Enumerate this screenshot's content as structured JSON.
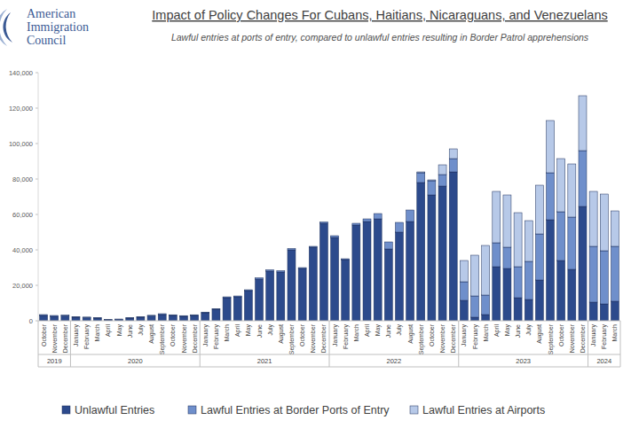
{
  "header": {
    "logo_lines": [
      "American",
      "Immigration",
      "Council"
    ]
  },
  "chart_data": {
    "type": "bar",
    "stacked": true,
    "grid": false,
    "legend": "bottom",
    "title": "Impact of Policy Changes For Cubans, Haitians, Nicaraguans, and Venezuelans",
    "subtitle": "Lawful entries at ports of entry, compared to unlawful entries resulting in Border Patrol apprehensions",
    "categories": [
      "October",
      "November",
      "December",
      "January",
      "February",
      "March",
      "April",
      "May",
      "June",
      "July",
      "August",
      "September",
      "October",
      "November",
      "December",
      "January",
      "February",
      "March",
      "April",
      "May",
      "June",
      "July",
      "August",
      "September",
      "October",
      "November",
      "December",
      "January",
      "February",
      "March",
      "April",
      "May",
      "June",
      "July",
      "August",
      "September",
      "October",
      "November",
      "December",
      "January",
      "February",
      "March",
      "April",
      "May",
      "June",
      "July",
      "August",
      "September",
      "October",
      "November",
      "December",
      "January",
      "February",
      "March"
    ],
    "category_years": [
      "2019",
      "2019",
      "2019",
      "2020",
      "2020",
      "2020",
      "2020",
      "2020",
      "2020",
      "2020",
      "2020",
      "2020",
      "2020",
      "2020",
      "2020",
      "2021",
      "2021",
      "2021",
      "2021",
      "2021",
      "2021",
      "2021",
      "2021",
      "2021",
      "2021",
      "2021",
      "2021",
      "2022",
      "2022",
      "2022",
      "2022",
      "2022",
      "2022",
      "2022",
      "2022",
      "2022",
      "2022",
      "2022",
      "2022",
      "2023",
      "2023",
      "2023",
      "2023",
      "2023",
      "2023",
      "2023",
      "2023",
      "2023",
      "2023",
      "2023",
      "2023",
      "2024",
      "2024",
      "2024"
    ],
    "ylim": [
      0,
      140000
    ],
    "yticks": [
      0,
      {
        "value": 20000,
        "label": "20,000"
      },
      {
        "value": 40000,
        "label": "40,000"
      },
      {
        "value": 60000,
        "label": "60,000"
      },
      {
        "value": 80000,
        "label": "80,000"
      },
      {
        "value": 100000,
        "label": "100,000"
      },
      {
        "value": 120000,
        "label": "120,000"
      },
      {
        "value": 140000,
        "label": "140,000"
      }
    ],
    "series": [
      {
        "name": "Unlawful Entries",
        "color": "#2c4a8c",
        "values": [
          3000,
          2500,
          2800,
          2000,
          1800,
          1500,
          500,
          800,
          1500,
          2000,
          2800,
          3500,
          3000,
          2500,
          3000,
          4500,
          6500,
          13000,
          13500,
          17000,
          23500,
          28000,
          27500,
          40000,
          29500,
          41500,
          55000,
          47000,
          34500,
          54000,
          56000,
          57500,
          40500,
          50000,
          56000,
          78000,
          71000,
          76000,
          84000,
          11500,
          2000,
          3500,
          30500,
          29500,
          13000,
          12000,
          23000,
          57000,
          34000,
          29000,
          64500,
          10500,
          9500,
          11000
        ]
      },
      {
        "name": "Lawful Entries at Border Ports of Entry",
        "color": "#6f8fcb",
        "values": [
          500,
          500,
          500,
          300,
          300,
          300,
          200,
          200,
          300,
          300,
          300,
          500,
          400,
          400,
          400,
          400,
          300,
          500,
          500,
          500,
          800,
          800,
          800,
          800,
          500,
          500,
          800,
          1000,
          500,
          1000,
          1500,
          3000,
          4000,
          5500,
          6500,
          5500,
          8000,
          6500,
          7500,
          10500,
          12000,
          11000,
          13500,
          12000,
          17500,
          21500,
          26000,
          26500,
          27500,
          29500,
          31500,
          31500,
          30000,
          31000
        ]
      },
      {
        "name": "Lawful Entries at Airports",
        "color": "#b7c9e8",
        "values": [
          0,
          0,
          0,
          0,
          0,
          0,
          0,
          0,
          0,
          0,
          0,
          0,
          0,
          0,
          0,
          0,
          0,
          0,
          0,
          0,
          0,
          0,
          0,
          0,
          0,
          0,
          0,
          0,
          0,
          0,
          0,
          0,
          0,
          0,
          0,
          500,
          500,
          5500,
          5500,
          12000,
          23000,
          28000,
          29000,
          29500,
          30500,
          23000,
          27500,
          29500,
          30000,
          30000,
          31000,
          31000,
          32000,
          20000
        ]
      }
    ]
  }
}
